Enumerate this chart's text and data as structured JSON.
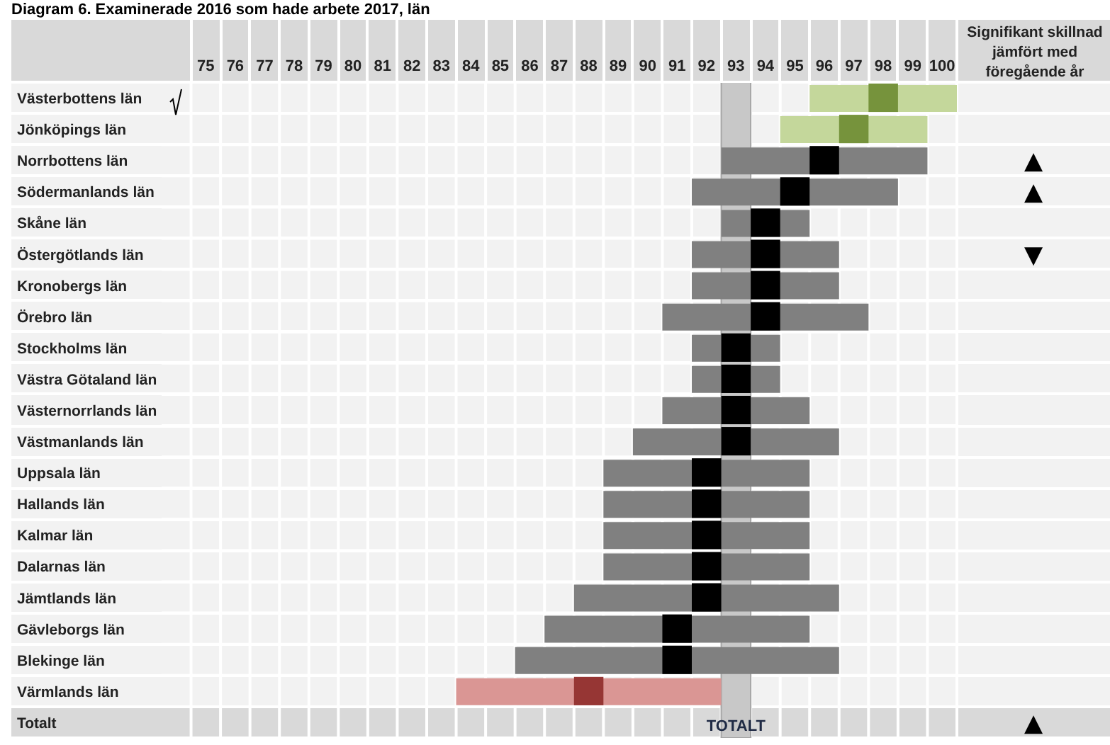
{
  "chart_data": {
    "type": "bar",
    "title": "Diagram 6. Examinerade 2016 som hade arbete 2017, län",
    "orientation": "horizontal",
    "categories": [
      "Västerbottens län",
      "Jönköpings län",
      "Norrbottens län",
      "Södermanlands län",
      "Skåne län",
      "Östergötlands län",
      "Kronobergs län",
      "Örebro län",
      "Stockholms län",
      "Västra Götaland län",
      "Västernorrlands län",
      "Västmanlands län",
      "Uppsala län",
      "Hallands län",
      "Kalmar län",
      "Dalarnas län",
      "Jämtlands län",
      "Gävleborgs län",
      "Blekinge län",
      "Värmlands län",
      "Totalt"
    ],
    "y2_categories": [
      null,
      null,
      "▲",
      "▲",
      null,
      "▼",
      null,
      null,
      null,
      null,
      null,
      null,
      null,
      null,
      null,
      null,
      null,
      null,
      null,
      null,
      "▲"
    ],
    "y2label": "Signifikant skillnad jämfört med föregående år",
    "series": [
      {
        "base": [
          95.5,
          94.5,
          92.5,
          91.5,
          92.5,
          91.5,
          91.5,
          90.5,
          91.5,
          91.5,
          90.5,
          89.5,
          88.5,
          88.5,
          88.5,
          88.5,
          87.5,
          86.5,
          85.5,
          83.5,
          null
        ],
        "colors": [
          "#c4d79b",
          "#c4d79b",
          "#808080",
          "#808080",
          "#808080",
          "#808080",
          "#808080",
          "#808080",
          "#808080",
          "#808080",
          "#808080",
          "#808080",
          "#808080",
          "#808080",
          "#808080",
          "#808080",
          "#808080",
          "#808080",
          "#808080",
          "#da9694",
          null
        ],
        "values": [
          5,
          5,
          7,
          7,
          3,
          5,
          5,
          7,
          3,
          3,
          5,
          7,
          7,
          7,
          7,
          7,
          9,
          9,
          11,
          9,
          null
        ]
      },
      {
        "type": "scatter",
        "marker": "square",
        "colors": [
          "#76933c",
          "#76933c",
          "#000000",
          "#000000",
          "#000000",
          "#000000",
          "#000000",
          "#000000",
          "#000000",
          "#000000",
          "#000000",
          "#000000",
          "#000000",
          "#000000",
          "#000000",
          "#000000",
          "#000000",
          "#000000",
          "#000000",
          "#963634",
          null
        ],
        "values": [
          98,
          97,
          96,
          95,
          94,
          94,
          94,
          94,
          93,
          93,
          93,
          93,
          92,
          92,
          92,
          92,
          92,
          91,
          91,
          88,
          null
        ]
      }
    ],
    "xlim": [
      73.5,
      100.5
    ],
    "xticks": [
      75,
      76,
      77,
      78,
      79,
      80,
      81,
      82,
      83,
      84,
      85,
      86,
      87,
      88,
      89,
      90,
      91,
      92,
      93,
      94,
      95,
      96,
      97,
      98,
      99,
      100
    ],
    "grid": true,
    "bands": [
      {
        "axis": "x",
        "from": 92.5,
        "to": 93.5,
        "label": "TOTALT",
        "color": "#c8c8c8"
      }
    ]
  }
}
